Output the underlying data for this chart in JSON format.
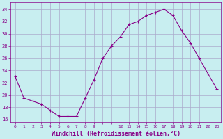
{
  "x": [
    0,
    1,
    2,
    3,
    4,
    5,
    6,
    7,
    8,
    9,
    10,
    11,
    12,
    13,
    14,
    15,
    16,
    17,
    18,
    19,
    20,
    21,
    22,
    23
  ],
  "y": [
    23.0,
    19.5,
    19.0,
    18.5,
    17.5,
    16.5,
    16.5,
    16.5,
    19.5,
    22.5,
    26.0,
    28.0,
    29.5,
    31.5,
    32.0,
    33.0,
    33.5,
    34.0,
    33.0,
    30.5,
    28.5,
    26.0,
    23.5,
    21.0
  ],
  "line_color": "#880088",
  "bg_color": "#c8eef0",
  "grid_color": "#aaaacc",
  "xlabel": "Windchill (Refroidissement éolien,°C)",
  "xlabel_color": "#880088",
  "xtick_labels": [
    "0",
    "1",
    "2",
    "3",
    "4",
    "5",
    "6",
    "7",
    "8",
    "9",
    "",
    "",
    "12",
    "13",
    "14",
    "15",
    "16",
    "17",
    "18",
    "19",
    "20",
    "21",
    "22",
    "23"
  ],
  "yticks": [
    16,
    18,
    20,
    22,
    24,
    26,
    28,
    30,
    32,
    34
  ],
  "ylim": [
    15.5,
    35.2
  ],
  "xlim": [
    -0.5,
    23.5
  ],
  "tick_color": "#880088",
  "marker": "+"
}
